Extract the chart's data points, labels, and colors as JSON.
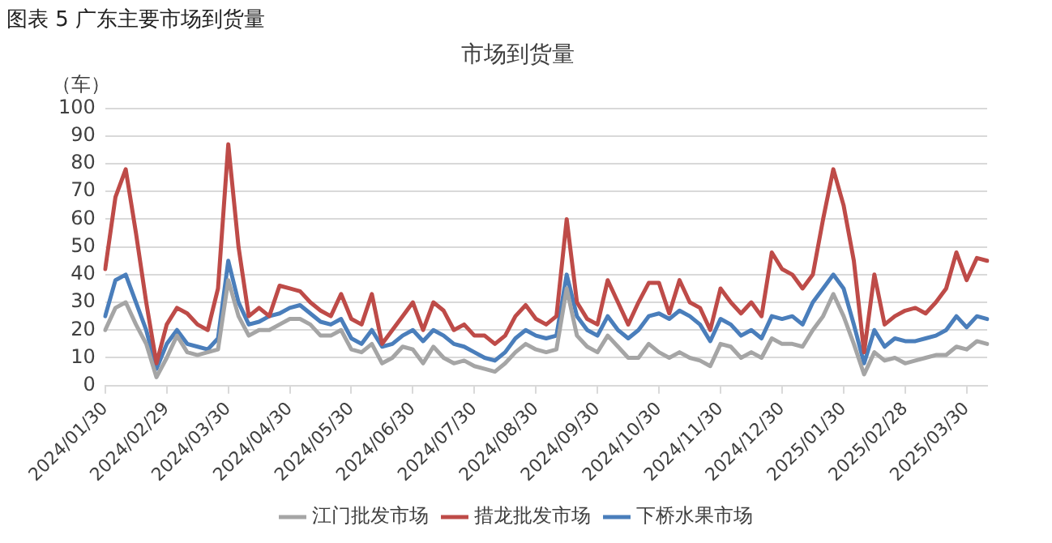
{
  "chart_data": {
    "type": "line",
    "title": "市场到货量",
    "ylabel": "（车）",
    "annotations": [
      "图表 5 广东主要市场到货量"
    ],
    "categories": [
      "2024/01/30",
      null,
      null,
      null,
      null,
      null,
      "2024/02/29",
      null,
      null,
      null,
      null,
      null,
      "2024/03/30",
      null,
      null,
      null,
      null,
      null,
      "2024/04/30",
      null,
      null,
      null,
      null,
      null,
      "2024/05/30",
      null,
      null,
      null,
      null,
      null,
      "2024/06/30",
      null,
      null,
      null,
      null,
      null,
      "2024/07/30",
      null,
      null,
      null,
      null,
      null,
      "2024/08/30",
      null,
      null,
      null,
      null,
      null,
      "2024/09/30",
      null,
      null,
      null,
      null,
      null,
      "2024/10/30",
      null,
      null,
      null,
      null,
      null,
      "2024/11/30",
      null,
      null,
      null,
      null,
      null,
      "2024/12/30",
      null,
      null,
      null,
      null,
      null,
      "2025/01/30",
      null,
      null,
      null,
      null,
      null,
      "2025/02/28",
      null,
      null,
      null,
      null,
      null,
      "2025/03/30",
      null,
      null
    ],
    "ylim": [
      0,
      100
    ],
    "yticks": [
      0,
      10,
      20,
      30,
      40,
      50,
      60,
      70,
      80,
      90,
      100
    ],
    "grid": "y",
    "legend": "bottom",
    "marker": "none",
    "line_style": "solid",
    "series": [
      {
        "name": "下桥水果市场",
        "color": "#4a7ebb",
        "values": [
          25,
          38,
          40,
          30,
          20,
          6,
          15,
          20,
          15,
          14,
          13,
          17,
          45,
          30,
          22,
          23,
          25,
          26,
          28,
          29,
          26,
          23,
          22,
          24,
          17,
          15,
          20,
          14,
          15,
          18,
          20,
          16,
          20,
          18,
          15,
          14,
          12,
          10,
          9,
          12,
          17,
          20,
          18,
          17,
          18,
          40,
          25,
          20,
          18,
          25,
          20,
          17,
          20,
          25,
          26,
          24,
          27,
          25,
          22,
          16,
          24,
          22,
          18,
          20,
          17,
          25,
          24,
          25,
          22,
          30,
          35,
          40,
          35,
          22,
          8,
          20,
          14,
          17,
          16,
          16,
          17,
          18,
          20,
          25,
          21,
          25,
          24
        ]
      },
      {
        "name": "措龙批发市场",
        "color": "#be4b48",
        "values": [
          42,
          68,
          78,
          55,
          30,
          8,
          22,
          28,
          26,
          22,
          20,
          35,
          87,
          50,
          25,
          28,
          25,
          36,
          35,
          34,
          30,
          27,
          25,
          33,
          24,
          22,
          33,
          15,
          20,
          25,
          30,
          20,
          30,
          27,
          20,
          22,
          18,
          18,
          15,
          18,
          25,
          29,
          24,
          22,
          25,
          60,
          30,
          24,
          22,
          38,
          30,
          22,
          30,
          37,
          37,
          26,
          38,
          30,
          28,
          20,
          35,
          30,
          26,
          30,
          25,
          48,
          42,
          40,
          35,
          40,
          60,
          78,
          65,
          45,
          12,
          40,
          22,
          25,
          27,
          28,
          26,
          30,
          35,
          48,
          38,
          46,
          45
        ]
      },
      {
        "name": "江门批发市场",
        "color": "#a5a5a5",
        "values": [
          20,
          28,
          30,
          22,
          15,
          3,
          10,
          18,
          12,
          11,
          12,
          13,
          38,
          25,
          18,
          20,
          20,
          22,
          24,
          24,
          22,
          18,
          18,
          20,
          13,
          12,
          15,
          8,
          10,
          14,
          13,
          8,
          14,
          10,
          8,
          9,
          7,
          6,
          5,
          8,
          12,
          15,
          13,
          12,
          13,
          35,
          18,
          14,
          12,
          18,
          14,
          10,
          10,
          15,
          12,
          10,
          12,
          10,
          9,
          7,
          15,
          14,
          10,
          12,
          10,
          17,
          15,
          15,
          14,
          20,
          25,
          33,
          25,
          15,
          4,
          12,
          9,
          10,
          8,
          9,
          10,
          11,
          11,
          14,
          13,
          16,
          15
        ]
      }
    ]
  }
}
